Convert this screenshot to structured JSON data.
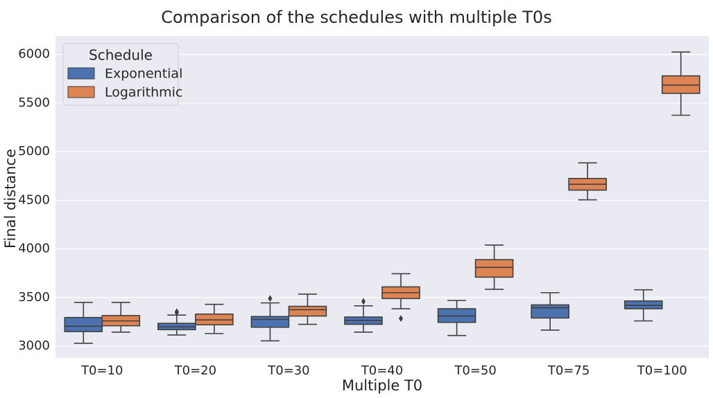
{
  "chart_data": {
    "type": "box",
    "title": "Comparison of the schedules with multiple T0s",
    "xlabel": "Multiple T0",
    "ylabel": "Final distance",
    "categories": [
      "T0=10",
      "T0=20",
      "T0=30",
      "T0=40",
      "T0=50",
      "T0=75",
      "T0=100"
    ],
    "ylim": [
      2880,
      6190
    ],
    "yticks": [
      3000,
      3500,
      4000,
      4500,
      5000,
      5500,
      6000
    ],
    "grid": true,
    "legend": {
      "title": "Schedule",
      "placement": "top-left"
    },
    "series": [
      {
        "name": "Exponential",
        "color": "#4c72b0",
        "boxes": [
          {
            "whislo": 3030,
            "q1": 3150,
            "med": 3205,
            "q3": 3295,
            "whishi": 3450,
            "fliers": []
          },
          {
            "whislo": 3115,
            "q1": 3170,
            "med": 3200,
            "q3": 3235,
            "whishi": 3320,
            "fliers": [
              3345,
              3355
            ]
          },
          {
            "whislo": 3055,
            "q1": 3195,
            "med": 3275,
            "q3": 3305,
            "whishi": 3445,
            "fliers": [
              3490
            ]
          },
          {
            "whislo": 3145,
            "q1": 3225,
            "med": 3265,
            "q3": 3300,
            "whishi": 3415,
            "fliers": [
              3460
            ]
          },
          {
            "whislo": 3110,
            "q1": 3245,
            "med": 3310,
            "q3": 3385,
            "whishi": 3470,
            "fliers": []
          },
          {
            "whislo": 3165,
            "q1": 3290,
            "med": 3395,
            "q3": 3425,
            "whishi": 3550,
            "fliers": []
          },
          {
            "whislo": 3260,
            "q1": 3385,
            "med": 3420,
            "q3": 3465,
            "whishi": 3580,
            "fliers": []
          }
        ]
      },
      {
        "name": "Logarithmic",
        "color": "#dd8452",
        "boxes": [
          {
            "whislo": 3145,
            "q1": 3210,
            "med": 3260,
            "q3": 3315,
            "whishi": 3450,
            "fliers": []
          },
          {
            "whislo": 3130,
            "q1": 3220,
            "med": 3270,
            "q3": 3330,
            "whishi": 3430,
            "fliers": []
          },
          {
            "whislo": 3225,
            "q1": 3310,
            "med": 3375,
            "q3": 3410,
            "whishi": 3535,
            "fliers": []
          },
          {
            "whislo": 3385,
            "q1": 3490,
            "med": 3550,
            "q3": 3610,
            "whishi": 3745,
            "fliers": [
              3285
            ]
          },
          {
            "whislo": 3585,
            "q1": 3710,
            "med": 3810,
            "q3": 3890,
            "whishi": 4040,
            "fliers": []
          },
          {
            "whislo": 4505,
            "q1": 4605,
            "med": 4665,
            "q3": 4725,
            "whishi": 4885,
            "fliers": []
          },
          {
            "whislo": 5375,
            "q1": 5600,
            "med": 5685,
            "q3": 5780,
            "whishi": 6025,
            "fliers": []
          }
        ]
      }
    ]
  }
}
